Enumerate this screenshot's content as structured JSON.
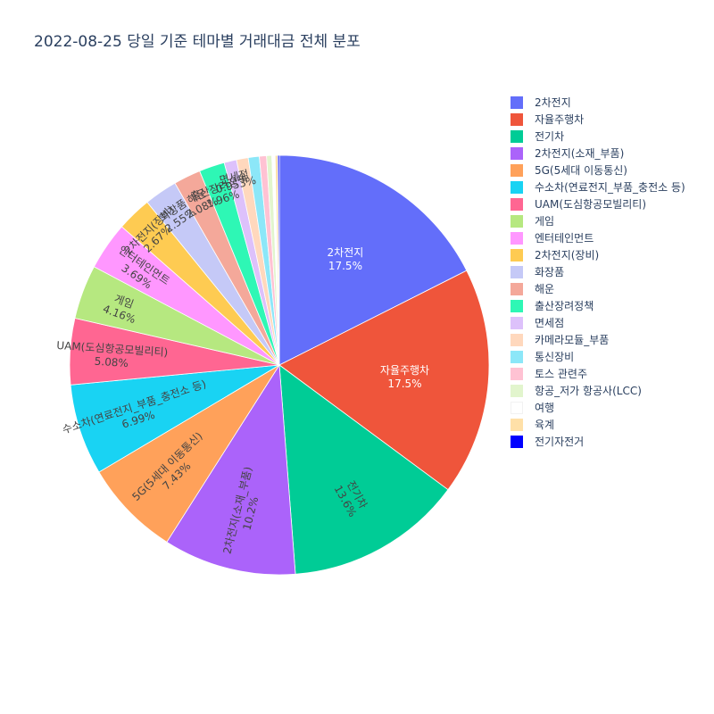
{
  "chart_data": {
    "type": "pie",
    "title": "2022-08-25 당일 기준 테마별 거래대금 전체 분포",
    "direction": "clockwise",
    "sort": "descending",
    "legend_position": "right",
    "slices": [
      {
        "label": "2차전지",
        "value": 17.5,
        "percent_text": "17.5%",
        "color": "#636efa"
      },
      {
        "label": "자율주행차",
        "value": 17.5,
        "percent_text": "17.5%",
        "color": "#EF553B"
      },
      {
        "label": "전기차",
        "value": 13.6,
        "percent_text": "13.6%",
        "color": "#00cc96"
      },
      {
        "label": "2차전지(소재_부품)",
        "value": 10.2,
        "percent_text": "10.2%",
        "color": "#ab63fa"
      },
      {
        "label": "5G(5세대 이동통신)",
        "value": 7.43,
        "percent_text": "7.43%",
        "color": "#FFA15A"
      },
      {
        "label": "수소차(연료전지_부품_충전소 등)",
        "value": 6.99,
        "percent_text": "6.99%",
        "color": "#19d3f3"
      },
      {
        "label": "UAM(도심항공모빌리티)",
        "value": 5.08,
        "percent_text": "5.08%",
        "color": "#FF6692"
      },
      {
        "label": "게임",
        "value": 4.16,
        "percent_text": "4.16%",
        "color": "#B6E880"
      },
      {
        "label": "엔터테인먼트",
        "value": 3.69,
        "percent_text": "3.69%",
        "color": "#FF97FF"
      },
      {
        "label": "2차전지(장비)",
        "value": 2.67,
        "percent_text": "2.67%",
        "color": "#FECB52"
      },
      {
        "label": "화장품",
        "value": 2.55,
        "percent_text": "2.55%",
        "color": "#c5c9f7"
      },
      {
        "label": "해운",
        "value": 2.08,
        "percent_text": "2.08%",
        "color": "#f4a89a"
      },
      {
        "label": "출산장려정책",
        "value": 1.96,
        "percent_text": "1.96%",
        "color": "#2ef7b5"
      },
      {
        "label": "면세점",
        "value": 0.953,
        "percent_text": "0.953%",
        "color": "#ddc1fb"
      },
      {
        "label": "카메라모듈_부품",
        "value": 0.9,
        "percent_text": "",
        "color": "#ffd8bd"
      },
      {
        "label": "통신장비",
        "value": 0.85,
        "percent_text": "",
        "color": "#8ce7f8"
      },
      {
        "label": "토스 관련주",
        "value": 0.55,
        "percent_text": "",
        "color": "#ffc2d3"
      },
      {
        "label": "항공_저가 항공사(LCC)",
        "value": 0.4,
        "percent_text": "",
        "color": "#e2f5cd"
      },
      {
        "label": "여행",
        "value": 0.25,
        "percent_text": "",
        "color": "#ffffff"
      },
      {
        "label": "육계",
        "value": 0.2,
        "percent_text": "",
        "color": "#ffe0a8"
      },
      {
        "label": "전기자전거",
        "value": 0.12,
        "percent_text": "",
        "color": "#0000ff"
      }
    ]
  }
}
